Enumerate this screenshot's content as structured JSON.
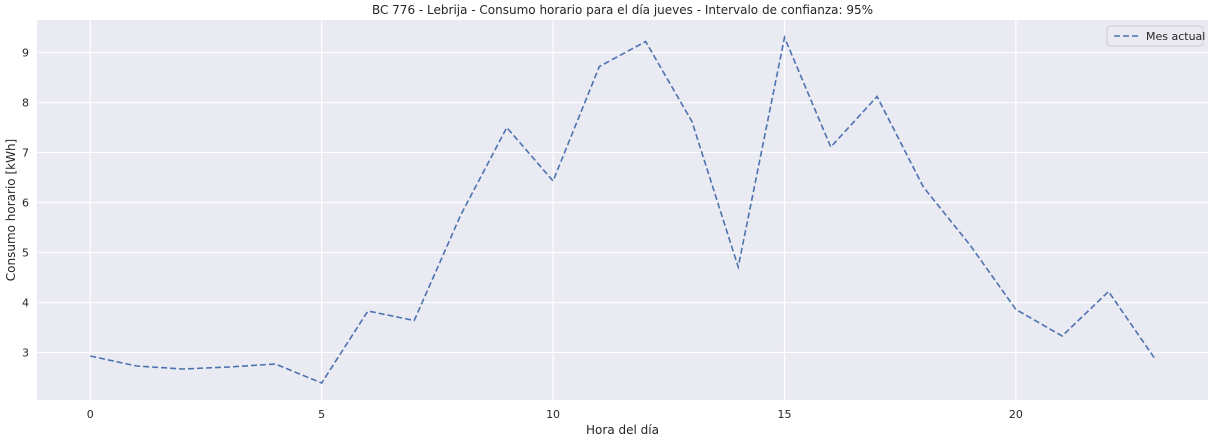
{
  "chart_data": {
    "type": "line",
    "title": "BC 776 - Lebrija - Consumo horario para el día jueves - Intervalo de confianza: 95%",
    "xlabel": "Hora del día",
    "ylabel": "Consumo horario [kWh]",
    "xlim": [
      -1.15,
      24.15
    ],
    "ylim": [
      2.05,
      9.65
    ],
    "xticks": [
      0,
      5,
      10,
      15,
      20
    ],
    "yticks": [
      3,
      4,
      5,
      6,
      7,
      8,
      9
    ],
    "grid": true,
    "legend_position": "top-right",
    "series": [
      {
        "name": "Mes actual",
        "line_style": "dashed",
        "color": "#4c72b0",
        "x": [
          0,
          1,
          2,
          3,
          4,
          5,
          6,
          7,
          8,
          9,
          10,
          11,
          12,
          13,
          14,
          15,
          16,
          17,
          18,
          19,
          20,
          21,
          22,
          23
        ],
        "values": [
          2.93,
          2.73,
          2.67,
          2.71,
          2.77,
          2.39,
          3.83,
          3.64,
          5.74,
          7.5,
          6.43,
          8.72,
          9.22,
          7.62,
          4.71,
          9.3,
          7.11,
          8.12,
          6.31,
          5.16,
          3.86,
          3.33,
          4.22,
          2.88
        ]
      }
    ],
    "colors": {
      "plot_background": "#eaeaf2",
      "grid": "#ffffff"
    }
  }
}
